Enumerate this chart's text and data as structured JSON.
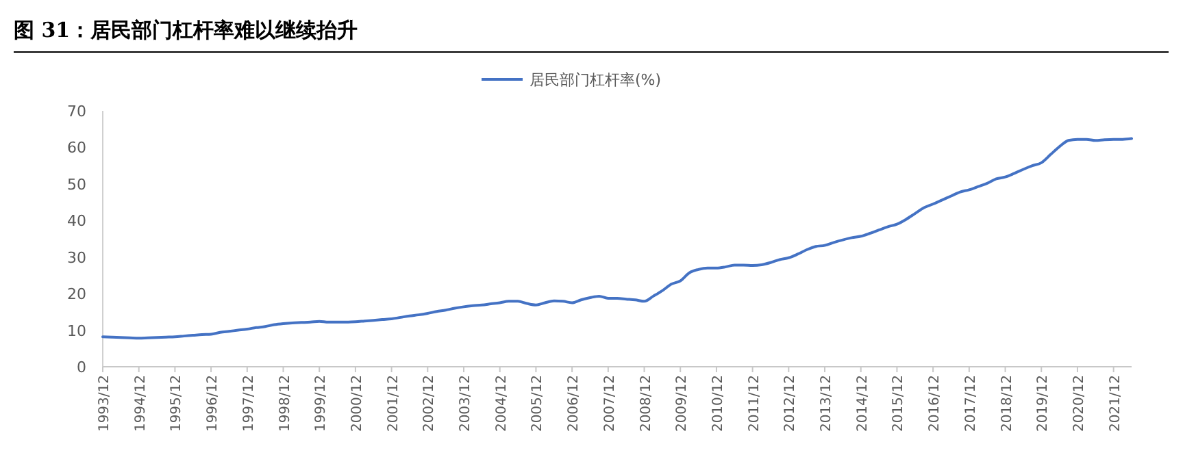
{
  "chart_data": {
    "type": "line",
    "title": "图 31：居民部门杠杆率难以继续抬升",
    "categories": [
      "1993/12",
      null,
      null,
      null,
      "1994/12",
      null,
      null,
      null,
      "1995/12",
      null,
      null,
      null,
      "1996/12",
      null,
      null,
      null,
      "1997/12",
      null,
      null,
      null,
      "1998/12",
      null,
      null,
      null,
      "1999/12",
      null,
      null,
      null,
      "2000/12",
      null,
      null,
      null,
      "2001/12",
      null,
      null,
      null,
      "2002/12",
      null,
      null,
      null,
      "2003/12",
      null,
      null,
      null,
      "2004/12",
      null,
      null,
      null,
      "2005/12",
      null,
      null,
      null,
      "2006/12",
      null,
      null,
      null,
      "2007/12",
      null,
      null,
      null,
      "2008/12",
      null,
      null,
      null,
      "2009/12",
      null,
      null,
      null,
      "2010/12",
      null,
      null,
      null,
      "2011/12",
      null,
      null,
      null,
      "2012/12",
      null,
      null,
      null,
      "2013/12",
      null,
      null,
      null,
      "2014/12",
      null,
      null,
      null,
      "2015/12",
      null,
      null,
      null,
      "2016/12",
      null,
      null,
      null,
      "2017/12",
      null,
      null,
      null,
      "2018/12",
      null,
      null,
      null,
      "2019/12",
      null,
      null,
      null,
      "2020/12",
      null,
      null,
      null,
      "2021/12",
      null,
      null
    ],
    "series": [
      {
        "name": "居民部门杠杆率(%)",
        "color": "#4472c4",
        "values": [
          8.2,
          8.1,
          8.0,
          7.9,
          7.8,
          7.9,
          8.0,
          8.1,
          8.2,
          8.4,
          8.6,
          8.8,
          8.9,
          9.4,
          9.7,
          10.0,
          10.3,
          10.7,
          11.0,
          11.5,
          11.8,
          12.0,
          12.1,
          12.2,
          12.4,
          12.2,
          12.2,
          12.2,
          12.3,
          12.5,
          12.7,
          12.9,
          13.1,
          13.5,
          13.9,
          14.2,
          14.6,
          15.1,
          15.5,
          16.0,
          16.4,
          16.7,
          16.9,
          17.2,
          17.5,
          17.9,
          17.9,
          17.3,
          16.9,
          17.5,
          18.0,
          17.9,
          17.5,
          18.3,
          18.9,
          19.3,
          18.7,
          18.7,
          18.5,
          18.3,
          17.9,
          19.3,
          20.8,
          22.6,
          23.5,
          25.7,
          26.6,
          27.0,
          27.0,
          27.3,
          27.8,
          27.8,
          27.7,
          27.9,
          28.5,
          29.3,
          29.8,
          30.8,
          32.0,
          32.9,
          33.2,
          34.0,
          34.7,
          35.3,
          35.7,
          36.5,
          37.4,
          38.3,
          39.0,
          40.3,
          41.9,
          43.5,
          44.5,
          45.6,
          46.7,
          47.8,
          48.4,
          49.3,
          50.2,
          51.4,
          51.9,
          52.9,
          54.0,
          55.0,
          55.8,
          58.0,
          60.2,
          61.9,
          62.2,
          62.2,
          61.9,
          62.1,
          62.2,
          62.2,
          62.4
        ]
      }
    ],
    "ylim": [
      0,
      70
    ],
    "yticks": [
      0,
      10,
      20,
      30,
      40,
      50,
      60,
      70
    ],
    "grid": false,
    "legend": "top",
    "marker": "none",
    "line_style": "solid"
  }
}
